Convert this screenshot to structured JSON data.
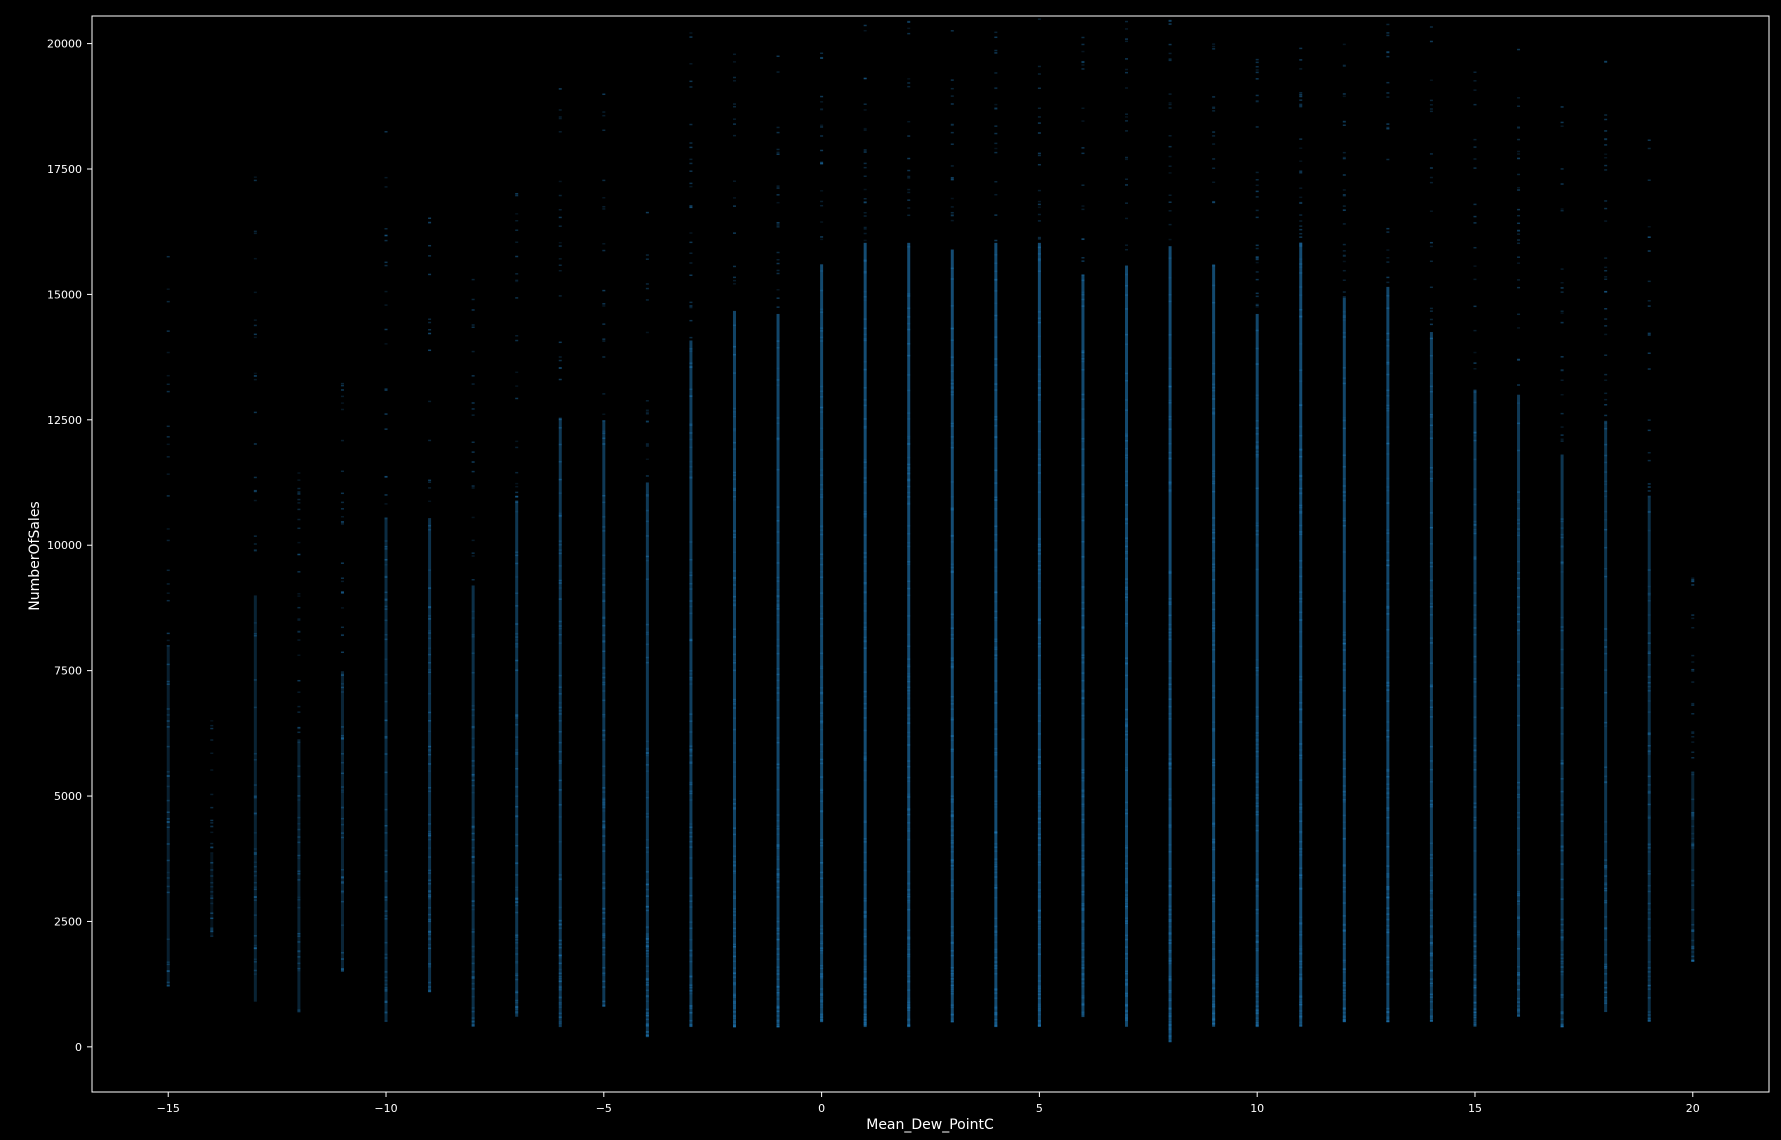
{
  "chart_data": {
    "type": "scatter",
    "title": "",
    "xlabel": "Mean_Dew_PointC",
    "ylabel": "NumberOfSales",
    "xlim": [
      -16.75,
      21.75
    ],
    "ylim": [
      -900,
      20550
    ],
    "xticks": [
      -15,
      -10,
      -5,
      0,
      5,
      10,
      15,
      20
    ],
    "yticks": [
      0,
      2500,
      5000,
      7500,
      10000,
      12500,
      15000,
      17500,
      20000
    ],
    "xtick_labels": [
      "−15",
      "−10",
      "−5",
      "0",
      "5",
      "10",
      "15",
      "20"
    ],
    "ytick_labels": [
      "0",
      "2500",
      "5000",
      "7500",
      "10000",
      "12500",
      "15000",
      "17500",
      "20000"
    ],
    "grid": false,
    "background": "#000000",
    "axis_color": "#ffffff",
    "point_color": "#1f77b4",
    "series": [
      {
        "x": [
          -15,
          -14,
          -13,
          -12,
          -11,
          -10,
          -9,
          -8,
          -7,
          -6,
          -5,
          -4,
          -3,
          -2,
          -1,
          0,
          1,
          2,
          3,
          4,
          5,
          6,
          7,
          8,
          9,
          10,
          11,
          12,
          13,
          14,
          15,
          16,
          17,
          18,
          19,
          20
        ],
        "y_min": [
          1200,
          2200,
          900,
          700,
          1500,
          500,
          1100,
          400,
          600,
          400,
          800,
          200,
          400,
          400,
          400,
          500,
          400,
          400,
          500,
          400,
          400,
          600,
          400,
          100,
          400,
          400,
          400,
          500,
          500,
          500,
          400,
          600,
          400,
          700,
          500,
          1700
        ],
        "y_max": [
          15900,
          6500,
          17600,
          11900,
          13300,
          18700,
          16900,
          15700,
          17200,
          19300,
          19000,
          17400,
          20300,
          20500,
          19800,
          20500,
          20500,
          20500,
          20300,
          20500,
          20500,
          20200,
          20500,
          20500,
          20500,
          19800,
          20500,
          20200,
          20500,
          20500,
          19500,
          19900,
          18800,
          19700,
          18700,
          9500
        ],
        "density": [
          0.25,
          0.08,
          0.3,
          0.3,
          0.35,
          0.45,
          0.55,
          0.5,
          0.6,
          0.65,
          0.65,
          0.65,
          0.75,
          0.8,
          0.85,
          0.9,
          0.95,
          0.95,
          0.95,
          0.95,
          0.95,
          0.9,
          0.9,
          0.95,
          0.9,
          0.85,
          0.95,
          0.85,
          0.85,
          0.75,
          0.7,
          0.65,
          0.6,
          0.6,
          0.5,
          0.3
        ]
      }
    ]
  }
}
